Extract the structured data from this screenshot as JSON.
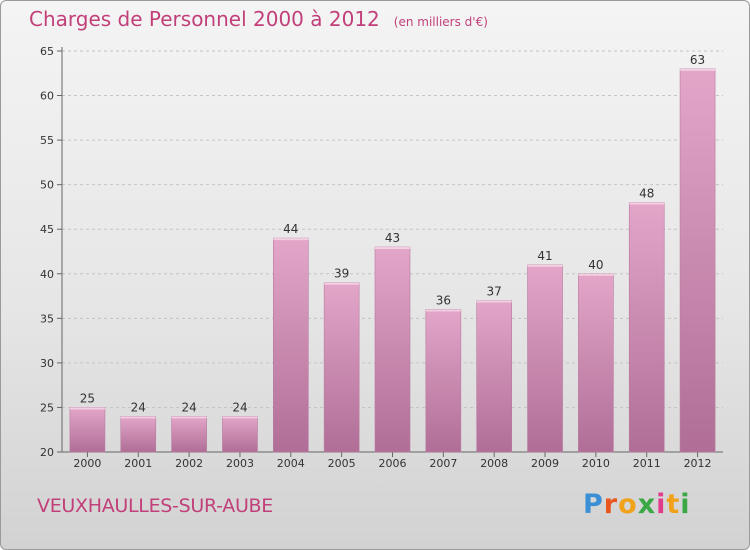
{
  "header": {
    "title": "Charges de Personnel 2000 à 2012",
    "subtitle": "(en milliers d'€)"
  },
  "footer": {
    "commune": "VEUXHAULLES-SUR-AUBE",
    "logo": "Proxiti",
    "logo_colors": [
      "#3b8fd4",
      "#e9571f",
      "#f0a21b",
      "#39a845",
      "#e23c8d",
      "#f0a21b",
      "#39a845"
    ]
  },
  "colors": {
    "bar_top": "#e3a6c9",
    "bar_bottom": "#b06e97",
    "accent": "#c2407a",
    "grid": "#c4c4c4"
  },
  "chart_data": {
    "type": "bar",
    "title": "Charges de Personnel 2000 à 2012",
    "subtitle": "(en milliers d'€)",
    "categories": [
      "2000",
      "2001",
      "2002",
      "2003",
      "2004",
      "2005",
      "2006",
      "2007",
      "2008",
      "2009",
      "2010",
      "2011",
      "2012"
    ],
    "values": [
      25,
      24,
      24,
      24,
      44,
      39,
      43,
      36,
      37,
      41,
      40,
      48,
      63
    ],
    "ylim": [
      20,
      65
    ],
    "yticks": [
      20,
      25,
      30,
      35,
      40,
      45,
      50,
      55,
      60,
      65
    ],
    "grid": true,
    "data_labels": true
  }
}
